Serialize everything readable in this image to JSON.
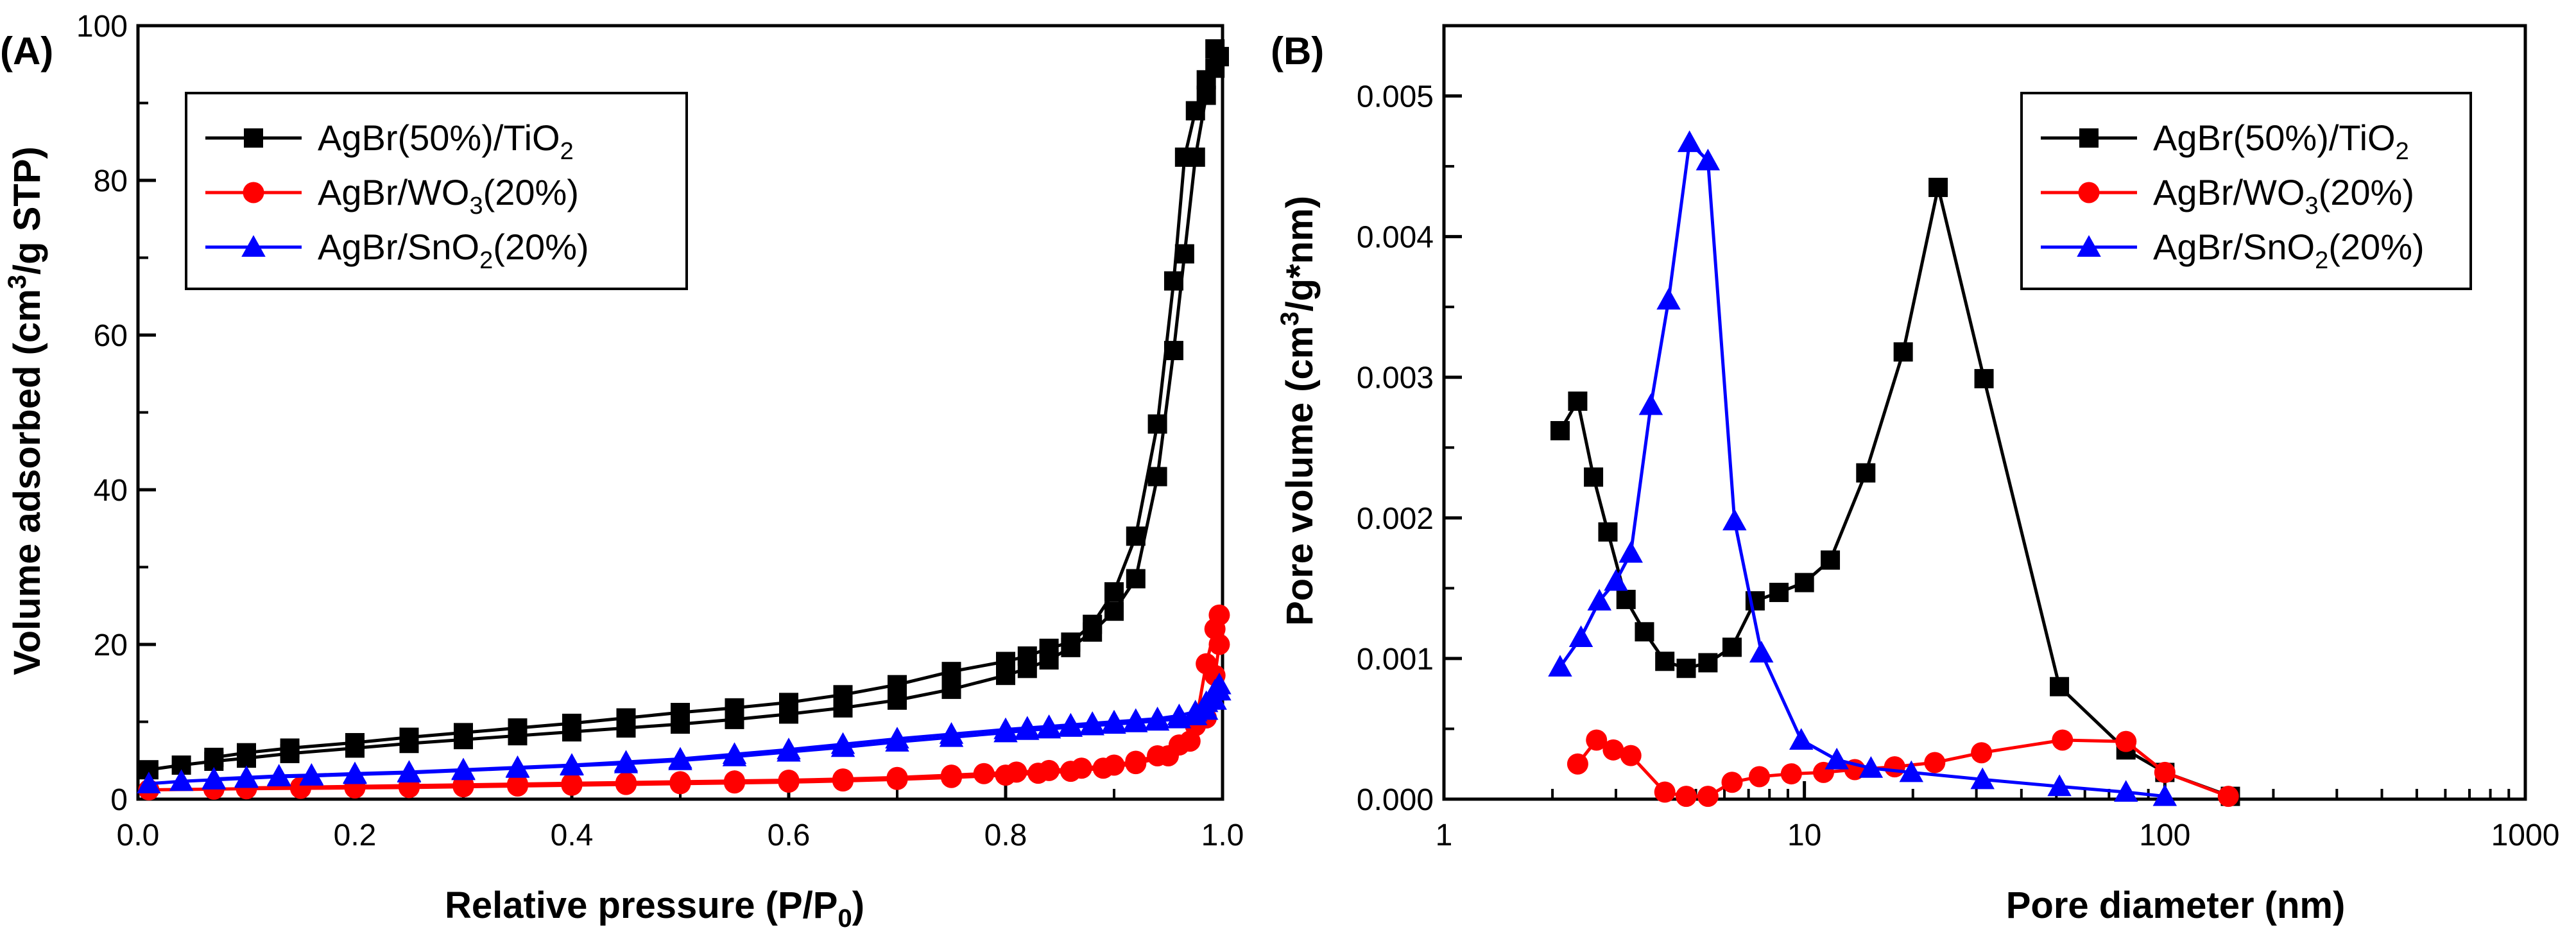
{
  "chart_data": [
    {
      "type": "line",
      "panel_label": "(A)",
      "title": "",
      "xlabel": "Relative pressure (P/P",
      "xlabel_sub": "0",
      "xlabel_tail": ")",
      "ylabel": "Volume adsorbed (cm",
      "ylabel_sup": "3",
      "ylabel_tail": "/g STP)",
      "xlim": [
        0.0,
        1.0
      ],
      "ylim": [
        0,
        100
      ],
      "xscale": "linear",
      "xticks": [
        0.0,
        0.2,
        0.4,
        0.6,
        0.8,
        1.0
      ],
      "xtick_labels": [
        "0.0",
        "0.2",
        "0.4",
        "0.6",
        "0.8",
        "1.0"
      ],
      "yticks": [
        0,
        20,
        40,
        60,
        80,
        100
      ],
      "ytick_labels": [
        "0",
        "20",
        "40",
        "60",
        "80",
        "100"
      ],
      "legend_position": "top-left",
      "series": [
        {
          "name": "AgBr(50%)/TiO₂",
          "legend": {
            "pre": "AgBr(50%)/TiO",
            "sub": "2",
            "post": ""
          },
          "color": "#000000",
          "marker": "square",
          "branches": [
            {
              "x": [
                0.01,
                0.04,
                0.07,
                0.1,
                0.14,
                0.2,
                0.25,
                0.3,
                0.35,
                0.4,
                0.45,
                0.5,
                0.55,
                0.6,
                0.65,
                0.7,
                0.75,
                0.8,
                0.82,
                0.84,
                0.86,
                0.88,
                0.9,
                0.92,
                0.94,
                0.955,
                0.965,
                0.975,
                0.985,
                0.993,
                0.997
              ],
              "y": [
                3.8,
                4.4,
                4.9,
                5.3,
                5.9,
                6.6,
                7.2,
                7.7,
                8.2,
                8.7,
                9.2,
                9.7,
                10.3,
                11.0,
                11.8,
                12.8,
                14.2,
                16.0,
                16.9,
                18.0,
                19.6,
                21.6,
                24.3,
                28.5,
                41.7,
                58.0,
                70.5,
                83.0,
                91.0,
                94.5,
                96.0
              ]
            },
            {
              "x": [
                0.997,
                0.993,
                0.985,
                0.975,
                0.965,
                0.955,
                0.94,
                0.92,
                0.9,
                0.88,
                0.86,
                0.84,
                0.82,
                0.8,
                0.75,
                0.7,
                0.65,
                0.6,
                0.55,
                0.5,
                0.45,
                0.4,
                0.35,
                0.3,
                0.25,
                0.2,
                0.14,
                0.1,
                0.07
              ],
              "y": [
                96.0,
                97.0,
                93.0,
                89.0,
                83.0,
                67.0,
                48.5,
                34.0,
                26.8,
                22.6,
                20.3,
                19.5,
                18.5,
                17.8,
                16.5,
                14.8,
                13.5,
                12.5,
                11.8,
                11.2,
                10.5,
                9.8,
                9.2,
                8.6,
                8.0,
                7.3,
                6.6,
                6.0,
                5.4
              ]
            }
          ]
        },
        {
          "name": "AgBr/WO₃(20%)",
          "legend": {
            "pre": "AgBr/WO",
            "sub": "3",
            "post": "(20%)"
          },
          "color": "#ff0000",
          "marker": "circle",
          "branches": [
            {
              "x": [
                0.01,
                0.07,
                0.1,
                0.15,
                0.2,
                0.25,
                0.3,
                0.35,
                0.4,
                0.45,
                0.5,
                0.55,
                0.6,
                0.65,
                0.7,
                0.75,
                0.8,
                0.83,
                0.86,
                0.89,
                0.92,
                0.95,
                0.97,
                0.985,
                0.993,
                0.997
              ],
              "y": [
                1.2,
                1.3,
                1.35,
                1.4,
                1.45,
                1.5,
                1.6,
                1.7,
                1.8,
                1.9,
                2.0,
                2.1,
                2.2,
                2.35,
                2.55,
                2.8,
                3.1,
                3.35,
                3.6,
                4.0,
                4.6,
                5.6,
                7.5,
                10.5,
                16.0,
                20.0
              ]
            },
            {
              "x": [
                0.997,
                0.993,
                0.985,
                0.975,
                0.96,
                0.94,
                0.92,
                0.9,
                0.87,
                0.84,
                0.81,
                0.78,
                0.75,
                0.7,
                0.65,
                0.6,
                0.55,
                0.5,
                0.45,
                0.4,
                0.35,
                0.3,
                0.25,
                0.2,
                0.15,
                0.1
              ],
              "y": [
                23.8,
                22.0,
                17.5,
                9.5,
                7.0,
                5.6,
                4.9,
                4.4,
                4.0,
                3.7,
                3.5,
                3.3,
                3.1,
                2.8,
                2.6,
                2.45,
                2.35,
                2.25,
                2.15,
                2.05,
                1.95,
                1.85,
                1.75,
                1.65,
                1.55,
                1.45
              ]
            }
          ]
        },
        {
          "name": "AgBr/SnO₂(20%)",
          "legend": {
            "pre": "AgBr/SnO",
            "sub": "2",
            "post": "(20%)"
          },
          "color": "#0000ff",
          "marker": "triangle",
          "branches": [
            {
              "x": [
                0.01,
                0.04,
                0.07,
                0.1,
                0.13,
                0.16,
                0.2,
                0.25,
                0.3,
                0.35,
                0.4,
                0.45,
                0.5,
                0.55,
                0.6,
                0.65,
                0.7,
                0.75,
                0.8,
                0.82,
                0.84,
                0.86,
                0.88,
                0.9,
                0.92,
                0.94,
                0.96,
                0.975,
                0.985,
                0.993,
                0.997
              ],
              "y": [
                2.0,
                2.3,
                2.5,
                2.7,
                2.9,
                3.0,
                3.2,
                3.4,
                3.7,
                4.0,
                4.3,
                4.6,
                5.0,
                5.5,
                6.1,
                6.7,
                7.4,
                8.0,
                8.6,
                8.9,
                9.1,
                9.3,
                9.5,
                9.7,
                9.9,
                10.1,
                10.4,
                10.8,
                11.5,
                12.8,
                14.0
              ]
            },
            {
              "x": [
                0.997,
                0.993,
                0.985,
                0.975,
                0.96,
                0.94,
                0.92,
                0.9,
                0.88,
                0.86,
                0.84,
                0.82,
                0.8,
                0.75,
                0.7,
                0.65,
                0.6,
                0.55,
                0.5,
                0.45,
                0.4,
                0.35,
                0.3,
                0.25,
                0.2,
                0.16,
                0.13,
                0.1,
                0.07
              ],
              "y": [
                14.8,
                14.0,
                12.5,
                11.3,
                10.8,
                10.4,
                10.2,
                10.0,
                9.8,
                9.6,
                9.4,
                9.2,
                9.0,
                8.4,
                7.8,
                7.1,
                6.4,
                5.8,
                5.2,
                4.8,
                4.4,
                4.1,
                3.8,
                3.5,
                3.3,
                3.1,
                3.0,
                2.8,
                2.6
              ]
            }
          ]
        }
      ]
    },
    {
      "type": "line",
      "panel_label": "(B)",
      "title": "",
      "xlabel": "Pore diameter (nm)",
      "ylabel": "Pore volume (cm",
      "ylabel_sup": "3",
      "ylabel_tail": "/g*nm)",
      "xscale": "log",
      "xlim": [
        1,
        1000
      ],
      "ylim": [
        0,
        0.0055
      ],
      "xticks": [
        1,
        10,
        100,
        1000
      ],
      "xtick_labels": [
        "1",
        "10",
        "100",
        "1000"
      ],
      "yticks": [
        0,
        0.001,
        0.002,
        0.003,
        0.004,
        0.005
      ],
      "ytick_labels": [
        "0.000",
        "0.001",
        "0.002",
        "0.003",
        "0.004",
        "0.005"
      ],
      "legend_position": "top-right",
      "series": [
        {
          "name": "AgBr(50%)/TiO₂",
          "legend": {
            "pre": "AgBr(50%)/TiO",
            "sub": "2",
            "post": ""
          },
          "color": "#000000",
          "marker": "square",
          "x": [
            2.1,
            2.35,
            2.6,
            2.85,
            3.2,
            3.6,
            4.1,
            4.7,
            5.4,
            6.3,
            7.3,
            8.5,
            10,
            11.8,
            14.8,
            18.8,
            23.5,
            31.5,
            51,
            78,
            100,
            152
          ],
          "y": [
            0.00262,
            0.00283,
            0.00229,
            0.0019,
            0.00142,
            0.00119,
            0.00098,
            0.00093,
            0.00097,
            0.00108,
            0.00141,
            0.00147,
            0.00154,
            0.0017,
            0.00232,
            0.00318,
            0.00435,
            0.00299,
            0.0008,
            0.00035,
            0.00019,
            2e-05
          ]
        },
        {
          "name": "AgBr/WO₃(20%)",
          "legend": {
            "pre": "AgBr/WO",
            "sub": "3",
            "post": "(20%)"
          },
          "color": "#ff0000",
          "marker": "circle",
          "x": [
            2.35,
            2.65,
            2.95,
            3.3,
            4.1,
            4.7,
            5.4,
            6.3,
            7.5,
            9.2,
            11.3,
            13.8,
            17.8,
            23,
            31,
            52,
            78,
            100,
            150
          ],
          "y": [
            0.00025,
            0.00042,
            0.00035,
            0.00031,
            5e-05,
            2e-05,
            2e-05,
            0.00012,
            0.00016,
            0.00018,
            0.00019,
            0.00021,
            0.00023,
            0.00026,
            0.00033,
            0.00042,
            0.00041,
            0.00019,
            2e-05
          ]
        },
        {
          "name": "AgBr/SnO₂(20%)",
          "legend": {
            "pre": "AgBr/SnO",
            "sub": "2",
            "post": "(20%)"
          },
          "color": "#0000ff",
          "marker": "triangle",
          "x": [
            2.1,
            2.4,
            2.7,
            3.0,
            3.3,
            3.75,
            4.2,
            4.8,
            5.4,
            6.4,
            7.6,
            9.8,
            12.3,
            15.3,
            19.8,
            31.2,
            51,
            78,
            100
          ],
          "y": [
            0.00094,
            0.00115,
            0.00141,
            0.00155,
            0.00175,
            0.0028,
            0.00355,
            0.00467,
            0.00454,
            0.00198,
            0.00104,
            0.00042,
            0.00028,
            0.00022,
            0.00019,
            0.00014,
            9e-05,
            5e-05,
            2e-05
          ]
        }
      ]
    }
  ]
}
